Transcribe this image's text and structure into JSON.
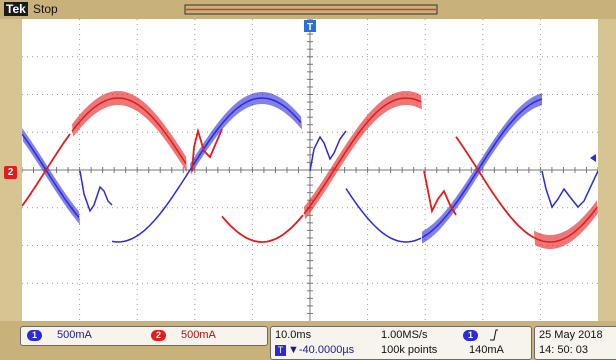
{
  "header": {
    "brand": "Tek",
    "run_state": "Stop"
  },
  "channels": [
    {
      "id": "1",
      "scale": "500mA",
      "color": "#2b2bd8"
    },
    {
      "id": "2",
      "scale": "500mA",
      "color": "#e21b1b"
    }
  ],
  "ch2_marker": "2",
  "trigger_marker": "T",
  "timebase": {
    "time_div": "10.0ms",
    "sample_rate": "1.00MS/s",
    "trigger_pos": "▼-40.0000µs",
    "record_length": "100k points"
  },
  "trigger": {
    "channel": "1",
    "slope_icon": "rising-edge-icon",
    "level": "140mA"
  },
  "datetime": {
    "date": "25 May  2018",
    "time": "14: 50: 03"
  },
  "colors": {
    "blue": "#2b2bd8",
    "red": "#e21b1b",
    "grid": "#9a9a9a"
  }
}
